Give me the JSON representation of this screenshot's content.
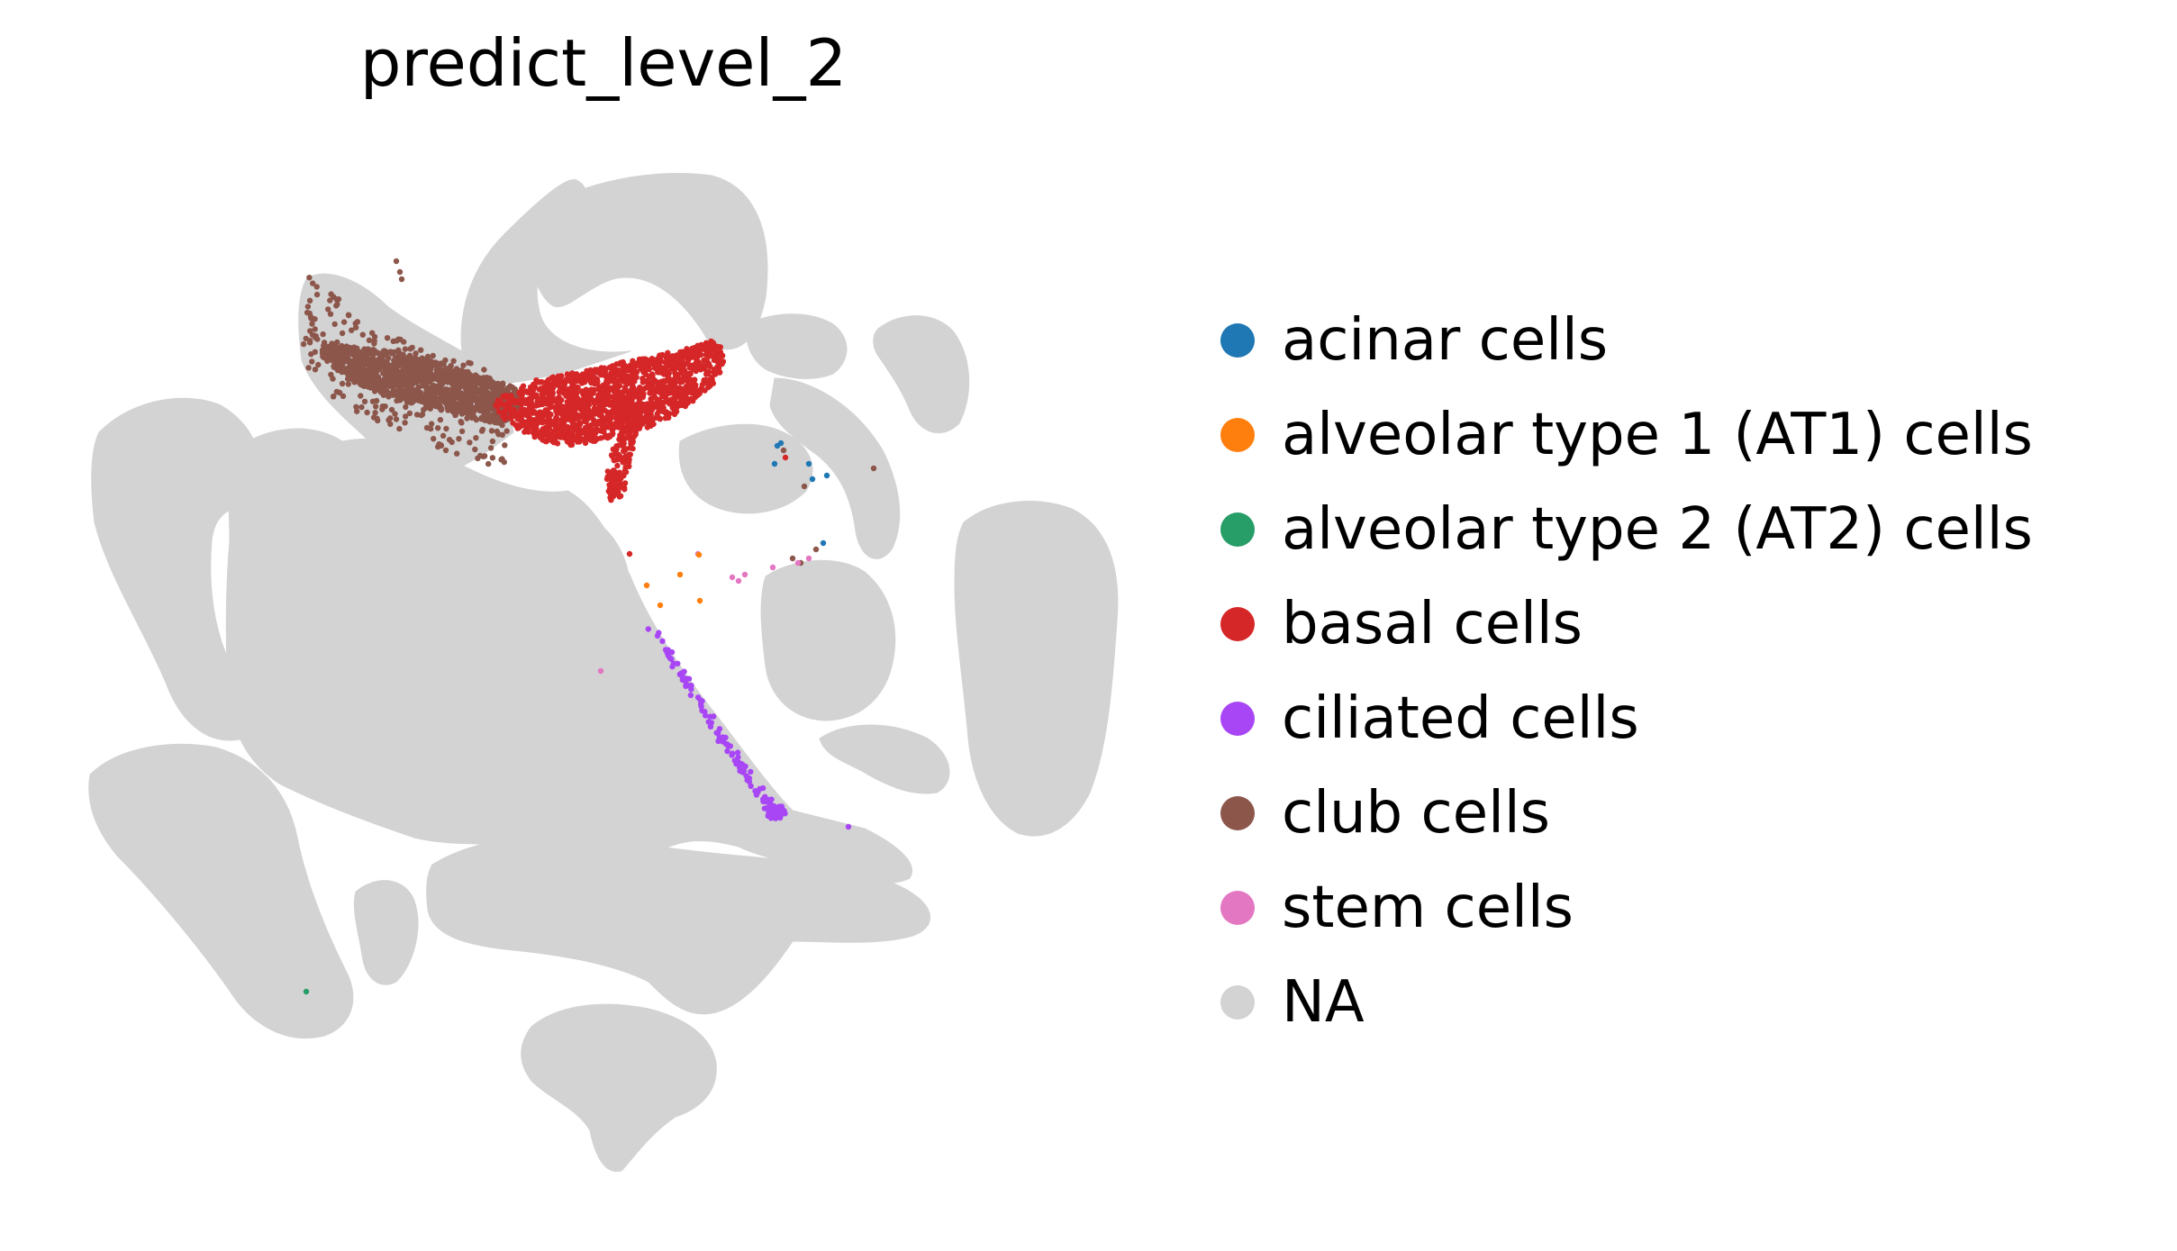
{
  "chart_data": {
    "type": "scatter",
    "title": "predict_level_2",
    "xlabel": "",
    "ylabel": "",
    "axes_visible": false,
    "grid": false,
    "legend_placement": "right",
    "series": [
      {
        "name": "acinar cells",
        "color": "#1f77b4",
        "points": [
          [
            863,
            495
          ],
          [
            867,
            492
          ],
          [
            860,
            515
          ],
          [
            898,
            515
          ],
          [
            914,
            603
          ],
          [
            902,
            532
          ],
          [
            918,
            528
          ]
        ]
      },
      {
        "name": "alveolar type 1 (AT1) cells",
        "color": "#ff7f0e",
        "points": [
          [
            718,
            650
          ],
          [
            755,
            638
          ],
          [
            777,
            667
          ],
          [
            733,
            672
          ],
          [
            776,
            616
          ]
        ]
      },
      {
        "name": "alveolar type 2 (AT2) cells",
        "color": "#279e68",
        "points": [
          [
            340,
            1101
          ]
        ]
      },
      {
        "name": "basal cells",
        "color": "#d62728",
        "clusters": [
          {
            "shape": "polygon",
            "count": 1500,
            "polygon": [
              [
                555,
                440
              ],
              [
                600,
                420
              ],
              [
                660,
                410
              ],
              [
                700,
                400
              ],
              [
                740,
                392
              ],
              [
                770,
                385
              ],
              [
                790,
                378
              ],
              [
                800,
                385
              ],
              [
                805,
                400
              ],
              [
                800,
                415
              ],
              [
                790,
                428
              ],
              [
                770,
                445
              ],
              [
                750,
                460
              ],
              [
                720,
                475
              ],
              [
                690,
                483
              ],
              [
                660,
                490
              ],
              [
                635,
                495
              ],
              [
                605,
                490
              ],
              [
                580,
                480
              ],
              [
                560,
                465
              ],
              [
                548,
                450
              ]
            ]
          },
          {
            "shape": "polygon",
            "count": 140,
            "polygon": [
              [
                690,
                470
              ],
              [
                710,
                465
              ],
              [
                700,
                510
              ],
              [
                692,
                550
              ],
              [
                677,
                556
              ],
              [
                673,
                530
              ],
              [
                680,
                500
              ]
            ]
          }
        ],
        "points": [
          [
            699,
            615
          ],
          [
            872,
            508
          ]
        ]
      },
      {
        "name": "ciliated cells",
        "color": "#a846f6",
        "path": [
          [
            705,
            670
          ],
          [
            725,
            700
          ],
          [
            745,
            730
          ],
          [
            765,
            760
          ],
          [
            785,
            790
          ],
          [
            805,
            825
          ],
          [
            825,
            855
          ],
          [
            848,
            885
          ],
          [
            870,
            905
          ]
        ],
        "count": 110,
        "dense_end": [
          870,
          905
        ],
        "points": [
          [
            942,
            918
          ]
        ]
      },
      {
        "name": "club cells",
        "color": "#8c564b",
        "clusters": [
          {
            "shape": "polygon",
            "count": 1200,
            "polygon": [
              [
                360,
                380
              ],
              [
                390,
                385
              ],
              [
                420,
                388
              ],
              [
                465,
                395
              ],
              [
                510,
                410
              ],
              [
                560,
                425
              ],
              [
                580,
                435
              ],
              [
                575,
                460
              ],
              [
                555,
                470
              ],
              [
                520,
                465
              ],
              [
                480,
                455
              ],
              [
                440,
                445
              ],
              [
                405,
                430
              ],
              [
                375,
                412
              ],
              [
                355,
                395
              ]
            ]
          },
          {
            "shape": "scatter_band",
            "count": 260,
            "polygon": [
              [
                342,
                300
              ],
              [
                360,
                300
              ],
              [
                380,
                340
              ],
              [
                420,
                370
              ],
              [
                470,
                380
              ],
              [
                540,
                410
              ],
              [
                570,
                460
              ],
              [
                560,
                520
              ],
              [
                520,
                510
              ],
              [
                470,
                490
              ],
              [
                420,
                470
              ],
              [
                380,
                450
              ],
              [
                345,
                420
              ],
              [
                335,
                380
              ]
            ]
          }
        ],
        "points": [
          [
            440,
            290
          ],
          [
            444,
            302
          ],
          [
            446,
            310
          ],
          [
            870,
            500
          ],
          [
            893,
            540
          ],
          [
            970,
            520
          ],
          [
            880,
            620
          ],
          [
            889,
            625
          ],
          [
            906,
            610
          ]
        ]
      },
      {
        "name": "stem cells",
        "color": "#e377c2",
        "points": [
          [
            813,
            641
          ],
          [
            820,
            645
          ],
          [
            827,
            638
          ],
          [
            858,
            630
          ],
          [
            886,
            625
          ],
          [
            898,
            620
          ],
          [
            667,
            745
          ],
          [
            775,
            615
          ]
        ]
      },
      {
        "name": "NA",
        "color": "#d3d3d3",
        "points": []
      }
    ]
  }
}
